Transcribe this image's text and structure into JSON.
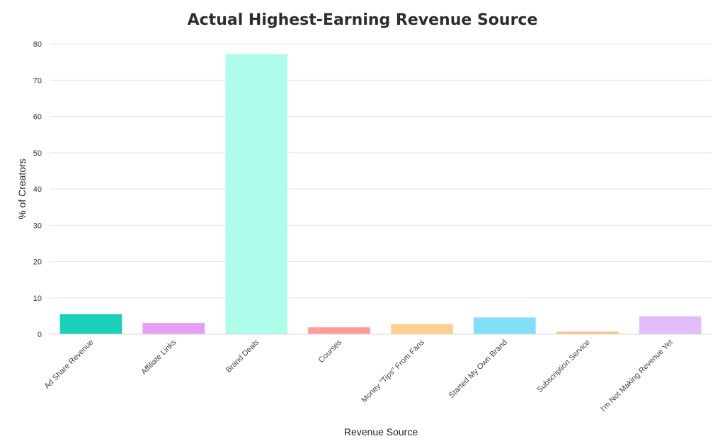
{
  "chart_data": {
    "type": "bar",
    "title": "Actual Highest-Earning Revenue Source",
    "xlabel": "Revenue Source",
    "ylabel": "% of Creators",
    "ylim": [
      0,
      80
    ],
    "yticks": [
      0,
      10,
      20,
      30,
      40,
      50,
      60,
      70,
      80
    ],
    "grid": true,
    "categories": [
      "Ad Share Revenue",
      "Affiliate Links",
      "Brand Deals",
      "Courses",
      "Money \"Tips\" From Fans",
      "Started My Own Brand",
      "Subscription Service",
      "I'm Not Making Revenue Yet"
    ],
    "values": [
      5.5,
      3.1,
      77.2,
      1.9,
      2.8,
      4.6,
      0.7,
      4.9
    ],
    "colors": [
      "#1ccfb7",
      "#e79df5",
      "#aefcea",
      "#ff9b98",
      "#ffd08f",
      "#82dffa",
      "#f1c987",
      "#e2bdf9"
    ]
  }
}
